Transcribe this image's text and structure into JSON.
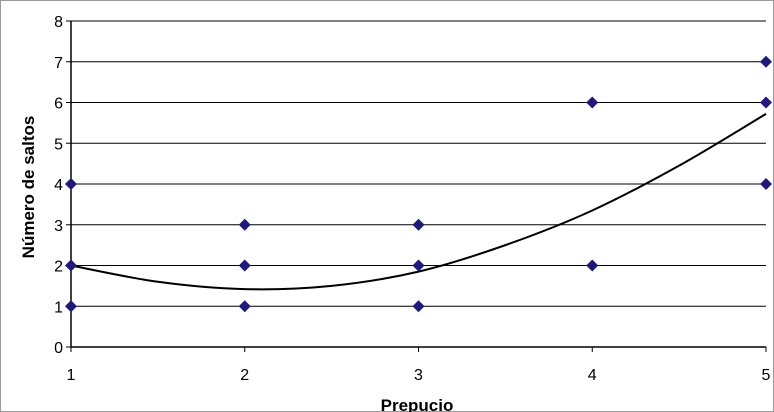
{
  "chart_data": {
    "type": "scatter",
    "xlabel": "Prepucio",
    "ylabel": "Número de saltos",
    "xlim": [
      1,
      5
    ],
    "ylim": [
      0,
      8
    ],
    "x_ticks": [
      "1",
      "2",
      "3",
      "4",
      "5"
    ],
    "y_ticks": [
      "0",
      "1",
      "2",
      "3",
      "4",
      "5",
      "6",
      "7",
      "8"
    ],
    "grid": true,
    "series": [
      {
        "points": [
          {
            "x": 1,
            "y": 1
          },
          {
            "x": 1,
            "y": 2
          },
          {
            "x": 1,
            "y": 4
          },
          {
            "x": 2,
            "y": 1
          },
          {
            "x": 2,
            "y": 2
          },
          {
            "x": 2,
            "y": 3
          },
          {
            "x": 3,
            "y": 1
          },
          {
            "x": 3,
            "y": 2
          },
          {
            "x": 3,
            "y": 3
          },
          {
            "x": 4,
            "y": 2
          },
          {
            "x": 4,
            "y": 6
          },
          {
            "x": 5,
            "y": 4
          },
          {
            "x": 5,
            "y": 6
          },
          {
            "x": 5,
            "y": 7
          }
        ],
        "color": "#1f1a7a"
      }
    ],
    "trendline": {
      "type": "polynomial",
      "points": [
        {
          "x": 1,
          "y": 2.0
        },
        {
          "x": 1.5,
          "y": 1.6
        },
        {
          "x": 2,
          "y": 1.42
        },
        {
          "x": 2.5,
          "y": 1.5
        },
        {
          "x": 3,
          "y": 1.85
        },
        {
          "x": 3.5,
          "y": 2.5
        },
        {
          "x": 4,
          "y": 3.35
        },
        {
          "x": 4.5,
          "y": 4.45
        },
        {
          "x": 5,
          "y": 5.72
        }
      ],
      "color": "#000000"
    }
  }
}
